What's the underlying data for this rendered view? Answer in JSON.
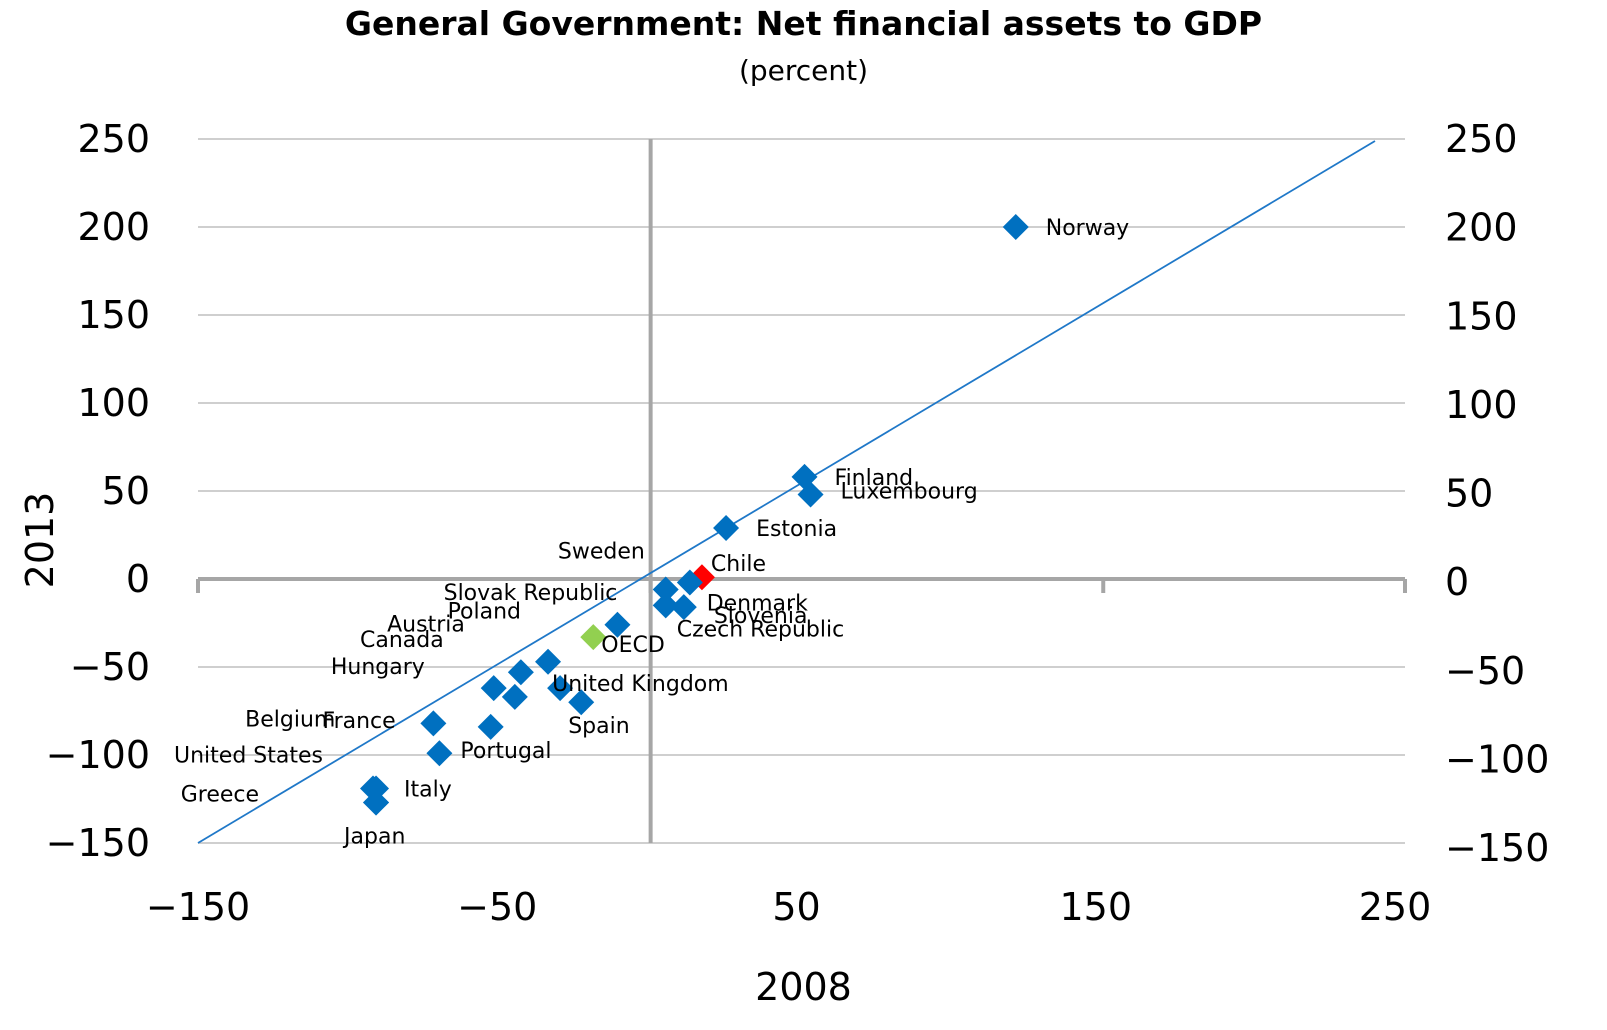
{
  "chart_data": {
    "type": "scatter",
    "title": "General Government: Net financial assets to GDP",
    "subtitle": "(percent)",
    "xlabel": "2008",
    "ylabel": "2013",
    "xlim": [
      -150,
      250
    ],
    "ylim": [
      -150,
      250
    ],
    "x_ticks": [
      "−150",
      "−50",
      "50",
      "150",
      "250"
    ],
    "y_ticks": [
      "250",
      "200",
      "150",
      "100",
      "50",
      "0",
      "−50",
      "−100",
      "−150"
    ],
    "grid": true,
    "reference_line": {
      "x1": -150,
      "y1": -150,
      "x2": 250,
      "y2": 250,
      "color": "#1f78c8"
    },
    "colors": {
      "default": "#0070c0",
      "Chile": "#ff0000",
      "OECD": "#92d050"
    },
    "points": [
      {
        "label": "Norway",
        "x": 121,
        "y": 200
      },
      {
        "label": "Finland",
        "x": 51,
        "y": 58
      },
      {
        "label": "Luxembourg",
        "x": 53,
        "y": 48
      },
      {
        "label": "Estonia",
        "x": 25,
        "y": 29
      },
      {
        "label": "Chile",
        "x": 17,
        "y": 1
      },
      {
        "label": "Sweden",
        "x": 13,
        "y": -2
      },
      {
        "label": "Denmark",
        "x": 5,
        "y": -6
      },
      {
        "label": "Slovenia",
        "x": 11,
        "y": -16
      },
      {
        "label": "Czech Republic",
        "x": 5,
        "y": -15
      },
      {
        "label": "Slovak Republic",
        "x": -11,
        "y": -26
      },
      {
        "label": "OECD",
        "x": -19,
        "y": -33
      },
      {
        "label": "Poland",
        "x": -34,
        "y": -47
      },
      {
        "label": "United Kingdom",
        "x": -30,
        "y": -62
      },
      {
        "label": "Spain",
        "x": -23,
        "y": -70
      },
      {
        "label": "Austria",
        "x": -43,
        "y": -53
      },
      {
        "label": "Canada",
        "x": -52,
        "y": -62
      },
      {
        "label": "Hungary",
        "x": -45,
        "y": -67
      },
      {
        "label": "France",
        "x": -53,
        "y": -84
      },
      {
        "label": "Portugal",
        "x": -70,
        "y": -99
      },
      {
        "label": "Belgium",
        "x": -72,
        "y": -82
      },
      {
        "label": "United States",
        "x": -92,
        "y": -119
      },
      {
        "label": "Italy",
        "x": -91,
        "y": -119
      },
      {
        "label": "Greece",
        "x": -91,
        "y": -127
      },
      {
        "label": "Japan",
        "x": -91,
        "y": -127
      }
    ],
    "point_labels": [
      {
        "text": "Norway",
        "ax": "left"
      },
      {
        "text": "Finland",
        "ax": "left"
      },
      {
        "text": "Luxembourg",
        "ax": "left"
      },
      {
        "text": "Estonia",
        "ax": "left"
      },
      {
        "text": "Chile",
        "ax": "left"
      },
      {
        "text": "Sweden",
        "ax": "right"
      },
      {
        "text": "Denmark",
        "ax": "left"
      },
      {
        "text": "Slovenia",
        "ax": "left"
      },
      {
        "text": "Czech Republic",
        "ax": "left"
      },
      {
        "text": "Slovak Republic",
        "ax": "right"
      },
      {
        "text": "OECD",
        "ax": "left"
      },
      {
        "text": "Poland",
        "ax": "right"
      },
      {
        "text": "United Kingdom",
        "ax": "left"
      },
      {
        "text": "Spain",
        "ax": "left"
      },
      {
        "text": "Austria",
        "ax": "right"
      },
      {
        "text": "Canada",
        "ax": "right"
      },
      {
        "text": "Hungary",
        "ax": "right"
      },
      {
        "text": "France",
        "ax": "right"
      },
      {
        "text": "Portugal",
        "ax": "left"
      },
      {
        "text": "Belgium",
        "ax": "right"
      },
      {
        "text": "United States",
        "ax": "right"
      },
      {
        "text": "Italy",
        "ax": "left"
      },
      {
        "text": "Greece",
        "ax": "right"
      },
      {
        "text": "Japan",
        "ax": "left"
      }
    ]
  }
}
